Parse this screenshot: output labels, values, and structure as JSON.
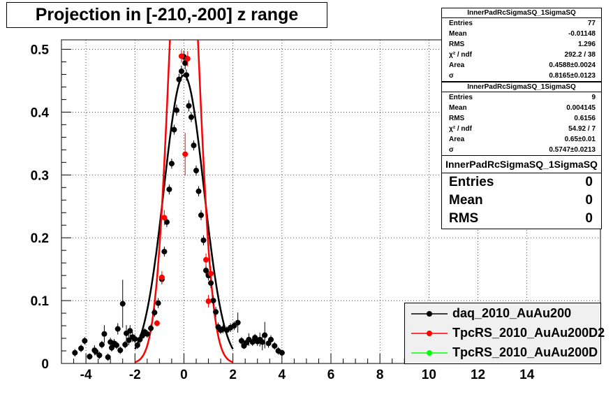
{
  "title": "Projection in [-210,-200] z range",
  "stat_boxes": [
    {
      "name": "InnerPadRcSigmaSQ_1SigmaSQ",
      "rows": [
        {
          "label": "Entries",
          "value": "77"
        },
        {
          "label": "Mean",
          "value": "-0.01148"
        },
        {
          "label": "RMS",
          "value": "1.296"
        },
        {
          "label": "χ² / ndf",
          "value": "292.2 / 38"
        },
        {
          "label": "Area",
          "value": "0.4588±0.0024"
        },
        {
          "label": "σ",
          "value": "0.8165±0.0123"
        }
      ]
    },
    {
      "name": "InnerPadRcSigmaSQ_1SigmaSQ",
      "rows": [
        {
          "label": "Entries",
          "value": "9"
        },
        {
          "label": "Mean",
          "value": "0.004145"
        },
        {
          "label": "RMS",
          "value": "0.6156"
        },
        {
          "label": "χ² / ndf",
          "value": "54.92 / 7"
        },
        {
          "label": "Area",
          "value": "0.65±0.01"
        },
        {
          "label": "σ",
          "value": "0.5747±0.0213"
        }
      ]
    },
    {
      "name": "InnerPadRcSigmaSQ_1SigmaSQ",
      "rows": [
        {
          "label": "Entries",
          "value": "0"
        },
        {
          "label": "Mean",
          "value": "0"
        },
        {
          "label": "RMS",
          "value": "0"
        }
      ]
    }
  ],
  "legend": [
    {
      "label": "daq_2010_AuAu200",
      "color": "#000000"
    },
    {
      "label": "TpcRS_2010_AuAu200D2",
      "color": "#ff0000"
    },
    {
      "label": "TpcRS_2010_AuAu200D",
      "color": "#00ff00"
    }
  ],
  "chart_data": {
    "type": "scatter",
    "title": "Projection in [-210,-200] z range",
    "xlabel": "",
    "ylabel": "",
    "xlim": [
      -5,
      17
    ],
    "ylim": [
      0,
      0.515
    ],
    "grid": true,
    "x_ticks": [
      -4,
      -2,
      0,
      2,
      4,
      6,
      8,
      10,
      12,
      14
    ],
    "x_tick_labels": [
      "-4",
      "-2",
      "0",
      "2",
      "4",
      "6",
      "8",
      "10",
      "12",
      "14"
    ],
    "y_ticks": [
      0,
      0.1,
      0.2,
      0.3,
      0.4,
      0.5
    ],
    "y_tick_labels": [
      "0",
      "0.1",
      "0.2",
      "0.3",
      "0.4",
      "0.5"
    ],
    "legend_position": "bottom-right",
    "series": [
      {
        "name": "daq_2010_AuAu200",
        "color": "#000000",
        "points": [
          [
            -4.45,
            0.017
          ],
          [
            -4.2,
            0.024
          ],
          [
            -4.05,
            0.036
          ],
          [
            -3.85,
            0.011
          ],
          [
            -3.65,
            0.021
          ],
          [
            -3.45,
            0.013
          ],
          [
            -3.35,
            0.03
          ],
          [
            -3.25,
            0.047
          ],
          [
            -3.1,
            0.01
          ],
          [
            -3.0,
            0.034
          ],
          [
            -2.85,
            0.032
          ],
          [
            -2.75,
            0.029
          ],
          [
            -2.7,
            0.055
          ],
          [
            -2.6,
            0.021
          ],
          [
            -2.5,
            0.095
          ],
          [
            -2.4,
            0.03
          ],
          [
            -2.35,
            0.048
          ],
          [
            -2.25,
            0.037
          ],
          [
            -2.2,
            0.052
          ],
          [
            -2.1,
            0.042
          ],
          [
            -2.0,
            0.039
          ],
          [
            -1.9,
            0.029
          ],
          [
            -1.8,
            0.038
          ],
          [
            -1.7,
            0.044
          ],
          [
            -1.6,
            0.05
          ],
          [
            -1.5,
            0.047
          ],
          [
            -1.35,
            0.056
          ],
          [
            -1.2,
            0.081
          ],
          [
            -1.05,
            0.096
          ],
          [
            -0.9,
            0.134
          ],
          [
            -0.8,
            0.178
          ],
          [
            -0.7,
            0.225
          ],
          [
            -0.6,
            0.277
          ],
          [
            -0.5,
            0.318
          ],
          [
            -0.4,
            0.372
          ],
          [
            -0.3,
            0.403
          ],
          [
            -0.2,
            0.452
          ],
          [
            -0.1,
            0.465
          ],
          [
            0.0,
            0.488
          ],
          [
            0.05,
            0.478
          ],
          [
            0.1,
            0.459
          ],
          [
            0.2,
            0.41
          ],
          [
            0.3,
            0.392
          ],
          [
            0.4,
            0.347
          ],
          [
            0.5,
            0.307
          ],
          [
            0.6,
            0.274
          ],
          [
            0.7,
            0.236
          ],
          [
            0.8,
            0.196
          ],
          [
            0.9,
            0.148
          ],
          [
            1.0,
            0.14
          ],
          [
            1.1,
            0.128
          ],
          [
            1.2,
            0.1
          ],
          [
            1.3,
            0.082
          ],
          [
            1.4,
            0.058
          ],
          [
            1.5,
            0.053
          ],
          [
            1.6,
            0.055
          ],
          [
            1.75,
            0.053
          ],
          [
            1.9,
            0.057
          ],
          [
            2.05,
            0.06
          ],
          [
            2.2,
            0.065
          ],
          [
            2.35,
            0.036
          ],
          [
            2.45,
            0.028
          ],
          [
            2.55,
            0.033
          ],
          [
            2.65,
            0.038
          ],
          [
            2.8,
            0.034
          ],
          [
            2.9,
            0.041
          ],
          [
            3.0,
            0.035
          ],
          [
            3.1,
            0.038
          ],
          [
            3.2,
            0.034
          ],
          [
            3.3,
            0.045
          ],
          [
            3.45,
            0.032
          ],
          [
            3.55,
            0.038
          ],
          [
            3.7,
            0.028
          ],
          [
            3.85,
            0.02
          ],
          [
            4.0,
            0.017
          ],
          [
            -3.6,
            0.019
          ],
          [
            -2.95,
            0.025
          ]
        ],
        "errors": [
          0.006,
          0.006,
          0.006,
          0.005,
          0.008,
          0.006,
          0.006,
          0.014,
          0.006,
          0.007,
          0.007,
          0.006,
          0.009,
          0.006,
          0.038,
          0.006,
          0.013,
          0.008,
          0.009,
          0.008,
          0.007,
          0.006,
          0.007,
          0.007,
          0.006,
          0.006,
          0.006,
          0.007,
          0.008,
          0.008,
          0.008,
          0.008,
          0.008,
          0.008,
          0.008,
          0.009,
          0.009,
          0.009,
          0.01,
          0.01,
          0.009,
          0.009,
          0.008,
          0.008,
          0.008,
          0.008,
          0.008,
          0.008,
          0.008,
          0.008,
          0.008,
          0.008,
          0.008,
          0.007,
          0.006,
          0.007,
          0.006,
          0.007,
          0.007,
          0.016,
          0.006,
          0.005,
          0.006,
          0.01,
          0.006,
          0.006,
          0.007,
          0.011,
          0.013,
          0.021,
          0.007,
          0.007,
          0.006,
          0.006,
          0.005,
          0.006,
          0.006
        ],
        "fit": {
          "norm": 0.4588,
          "sigma": 0.8165
        }
      },
      {
        "name": "TpcRS_2010_AuAu200D2",
        "color": "#ff0000",
        "points": [
          [
            -1.1,
            0.064
          ],
          [
            -0.9,
            0.137
          ],
          [
            -0.8,
            0.232
          ],
          [
            -0.1,
            0.489
          ],
          [
            0.05,
            0.333
          ],
          [
            0.15,
            0.485
          ],
          [
            0.9,
            0.165
          ],
          [
            1.0,
            0.099
          ],
          [
            1.1,
            0.143
          ]
        ],
        "errors": [
          0.005,
          0.01,
          0.012,
          0.01,
          0.034,
          0.012,
          0.01,
          0.01,
          0.012
        ],
        "fit": {
          "norm": 0.65,
          "sigma": 0.5747
        }
      },
      {
        "name": "TpcRS_2010_AuAu200D",
        "color": "#00ff00",
        "points": [],
        "errors": []
      }
    ]
  }
}
